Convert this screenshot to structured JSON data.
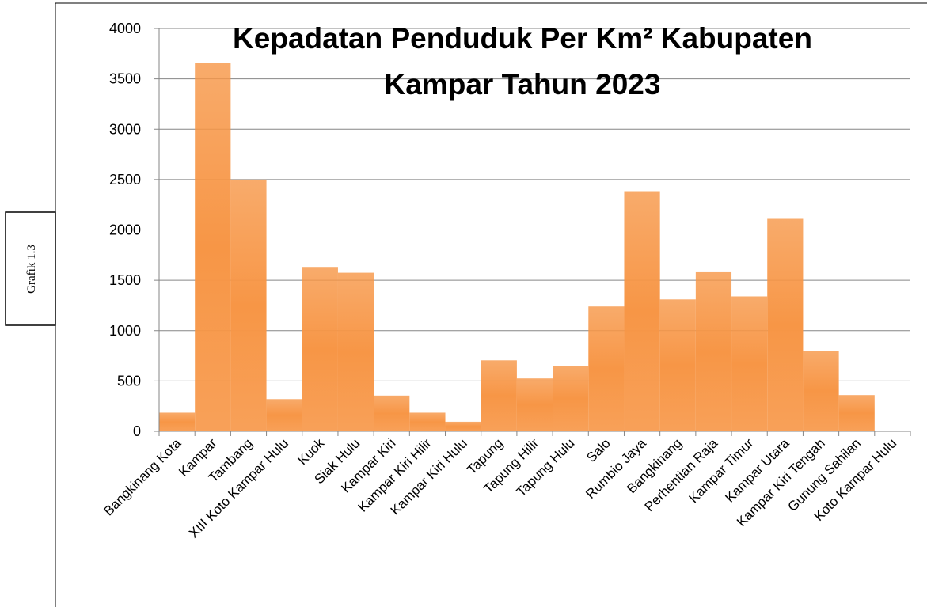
{
  "side_label": "Grafik 1.3",
  "chart_data": {
    "type": "bar",
    "title": "Kepadatan Penduduk Per Km² Kabupaten Kampar Tahun 2023",
    "categories": [
      "Bangkinang Kota",
      "Kampar",
      "Tambang",
      "XIII Koto Kampar Hulu",
      "Kuok",
      "Siak Hulu",
      "Kampar Kiri",
      "Kampar Kiri Hilir",
      "Kampar Kiri Hulu",
      "Tapung",
      "Tapung Hilir",
      "Tapung Hulu",
      "Salo",
      "Rumbio Jaya",
      "Bangkinang",
      "Perhentian Raja",
      "Kampar Timur",
      "Kampar Utara",
      "Kampar Kiri Tengah",
      "Gunung Sahilan",
      "Koto Kampar Hulu"
    ],
    "values": [
      185,
      3660,
      2500,
      320,
      1625,
      1575,
      355,
      185,
      95,
      705,
      525,
      650,
      1240,
      2385,
      1310,
      1580,
      1340,
      2110,
      800,
      360,
      0
    ],
    "color": "#f79646",
    "ylim": [
      0,
      4000
    ],
    "yticks": [
      0,
      500,
      1000,
      1500,
      2000,
      2500,
      3000,
      3500,
      4000
    ],
    "grid": true
  }
}
